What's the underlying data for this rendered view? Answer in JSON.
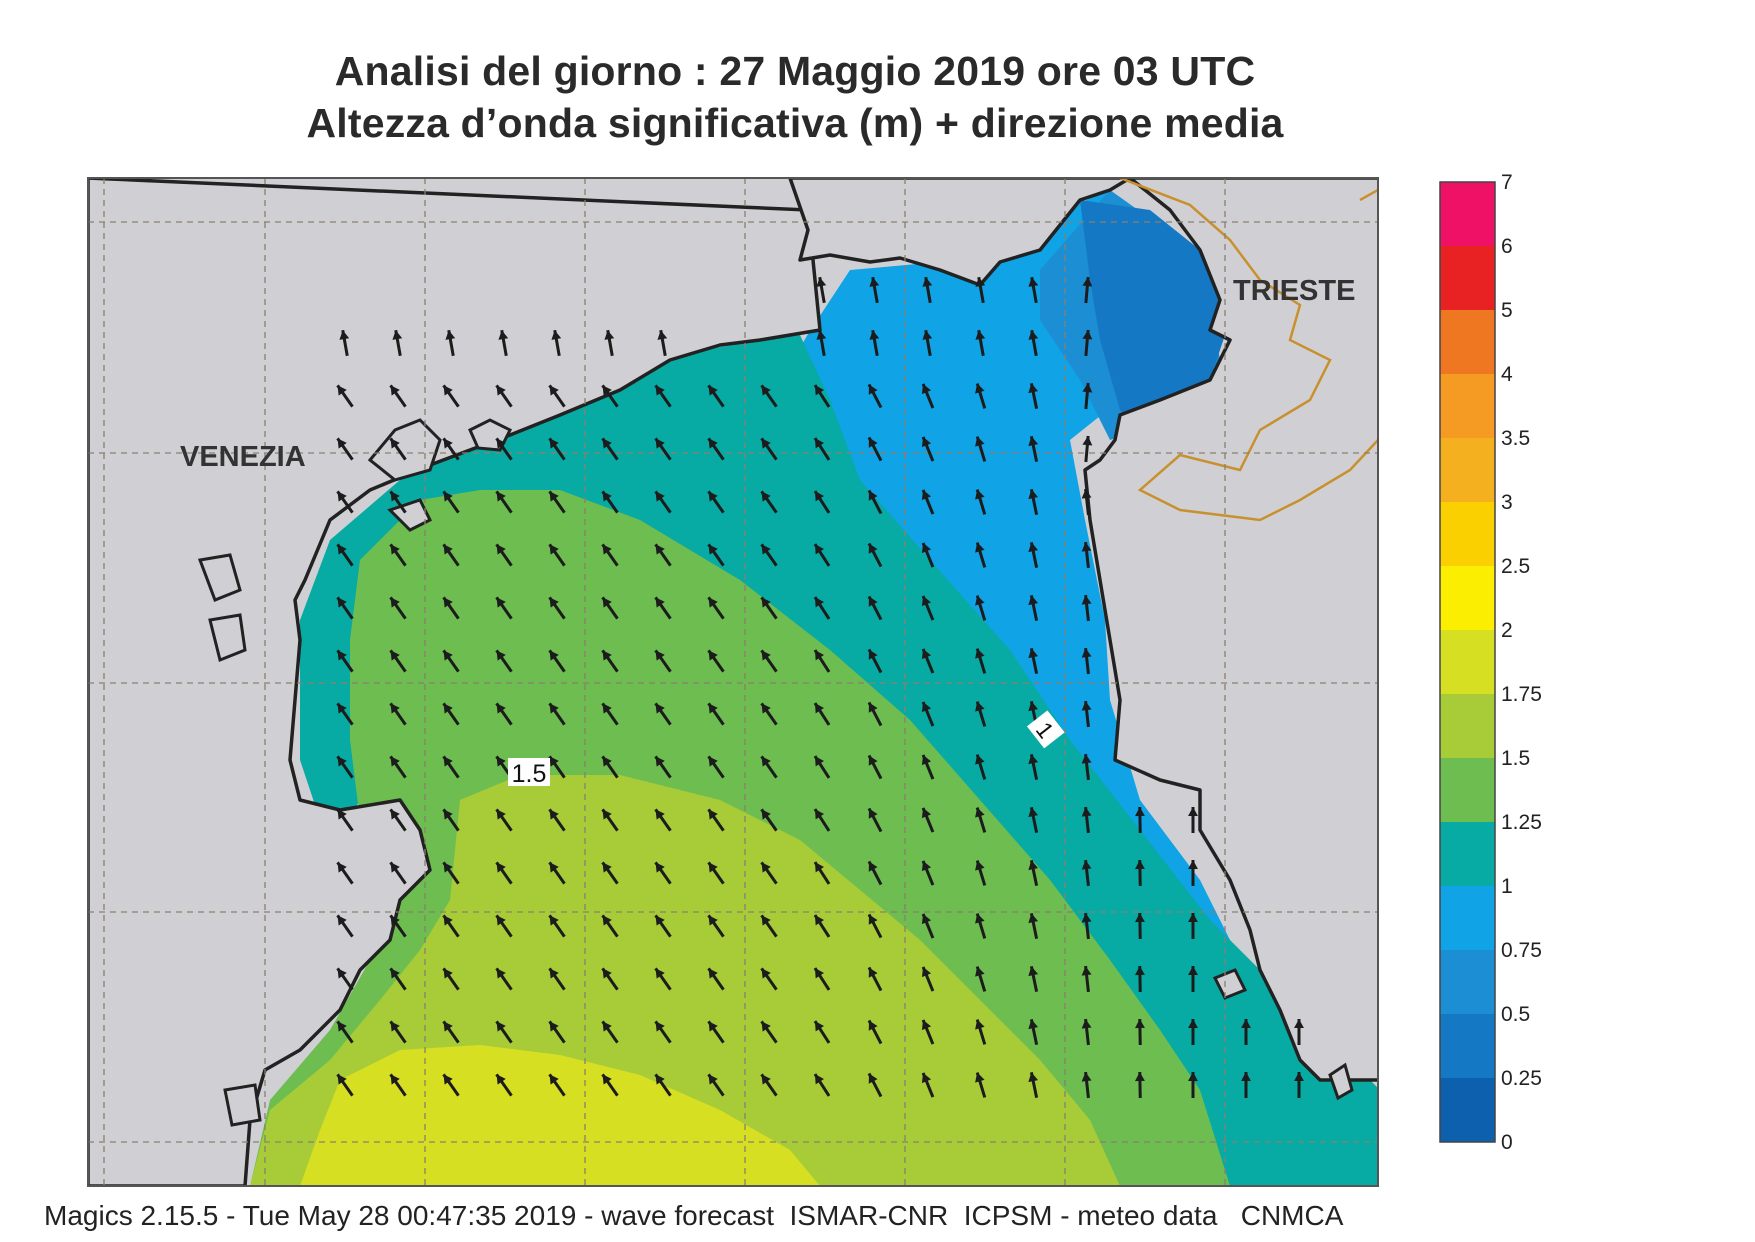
{
  "title": {
    "line1": "Analisi del giorno :  27   Maggio  2019   ore 03 UTC",
    "line2": "Altezza d’onda significativa (m) + direzione media"
  },
  "places": [
    {
      "name": "VENEZIA"
    },
    {
      "name": "TRIESTE"
    }
  ],
  "contour_labels": [
    "1.5",
    "1"
  ],
  "colorbar": {
    "ticks": [
      "7",
      "6",
      "5",
      "4",
      "3.5",
      "3",
      "2.5",
      "2",
      "1.75",
      "1.5",
      "1.25",
      "1",
      "0.75",
      "0.5",
      "0.25",
      "0"
    ],
    "colors": [
      "#ee1166",
      "#e82222",
      "#f07722",
      "#f59a22",
      "#f5b020",
      "#fbd000",
      "#fcee00",
      "#d6df22",
      "#a8cc38",
      "#6dbd50",
      "#08aaa4",
      "#10a3e5",
      "#1c8fd4",
      "#1578c4",
      "#0c60ad"
    ]
  },
  "colors": {
    "land": "#d0d0d4",
    "frame": "#555555",
    "arrow": "#1c1c1c",
    "border": "#c8902e"
  },
  "footer": "Magics 2.15.5 - Tue May 28 00:47:35 2019 - wave forecast  ISMAR-CNR  ICPSM - meteo data   CNMCA"
}
